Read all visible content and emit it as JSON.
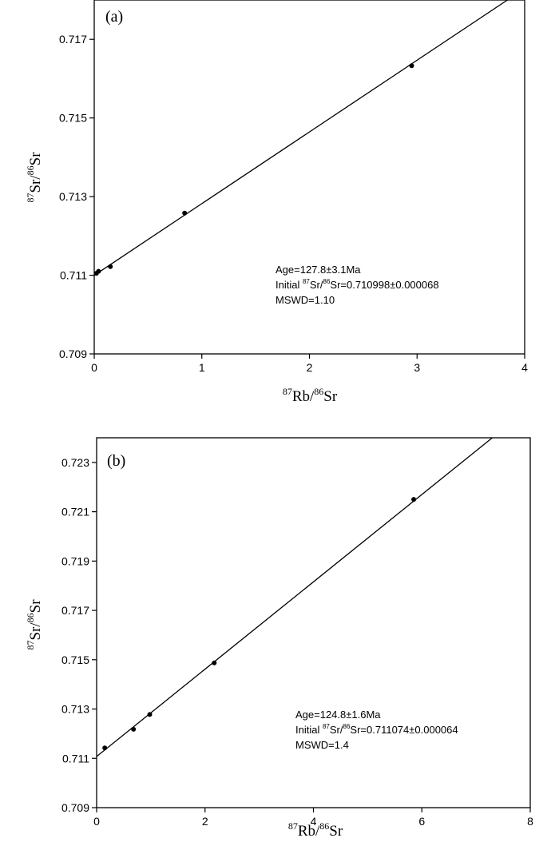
{
  "chart_data": [
    {
      "type": "scatter",
      "panel_label": "(a)",
      "xlabel": {
        "sup1": "87",
        "base1": "Rb/",
        "sup2": "86",
        "base2": "Sr"
      },
      "ylabel": {
        "sup1": "87",
        "base1": "Sr/",
        "sup2": "86",
        "base2": "Sr"
      },
      "xlim": [
        0,
        4
      ],
      "ylim": [
        0.709,
        0.718
      ],
      "xticks": [
        "0",
        "1",
        "2",
        "3",
        "4"
      ],
      "yticks": [
        "0.709",
        "0.711",
        "0.713",
        "0.715",
        "0.717"
      ],
      "points": [
        {
          "x": 0.02,
          "y": 0.71105
        },
        {
          "x": 0.04,
          "y": 0.7111
        },
        {
          "x": 0.15,
          "y": 0.71122
        },
        {
          "x": 0.84,
          "y": 0.71258
        },
        {
          "x": 2.95,
          "y": 0.71633
        }
      ],
      "fit_line": {
        "x0": 0,
        "y0": 0.710998,
        "x1": 3.84,
        "y1": 0.718
      },
      "annotation": {
        "line1": "Age=127.8±3.1Ma",
        "line2_a": "Initial ",
        "line2_sup1": "87",
        "line2_b": "Sr/",
        "line2_sup2": "86",
        "line2_c": "Sr=0.710998±0.000068",
        "line3": "MSWD=1.10"
      }
    },
    {
      "type": "scatter",
      "panel_label": "(b)",
      "xlabel": {
        "sup1": "87",
        "base1": "Rb/",
        "sup2": "86",
        "base2": "Sr"
      },
      "ylabel": {
        "sup1": "87",
        "base1": "Sr/",
        "sup2": "86",
        "base2": "Sr"
      },
      "xlim": [
        0,
        8
      ],
      "ylim": [
        0.709,
        0.724
      ],
      "xticks": [
        "0",
        "2",
        "4",
        "6",
        "8"
      ],
      "yticks": [
        "0.709",
        "0.711",
        "0.713",
        "0.715",
        "0.717",
        "0.719",
        "0.721",
        "0.723"
      ],
      "points": [
        {
          "x": 0.15,
          "y": 0.71142
        },
        {
          "x": 0.68,
          "y": 0.71218
        },
        {
          "x": 0.98,
          "y": 0.71278
        },
        {
          "x": 2.17,
          "y": 0.71487
        },
        {
          "x": 5.85,
          "y": 0.7215
        }
      ],
      "fit_line": {
        "x0": 0,
        "y0": 0.711074,
        "x1": 7.3,
        "y1": 0.724
      },
      "annotation": {
        "line1": "Age=124.8±1.6Ma",
        "line2_a": "Initial ",
        "line2_sup1": "87",
        "line2_b": "Sr/",
        "line2_sup2": "86",
        "line2_c": "Sr=0.711074±0.000064",
        "line3": "MSWD=1.4"
      }
    }
  ]
}
